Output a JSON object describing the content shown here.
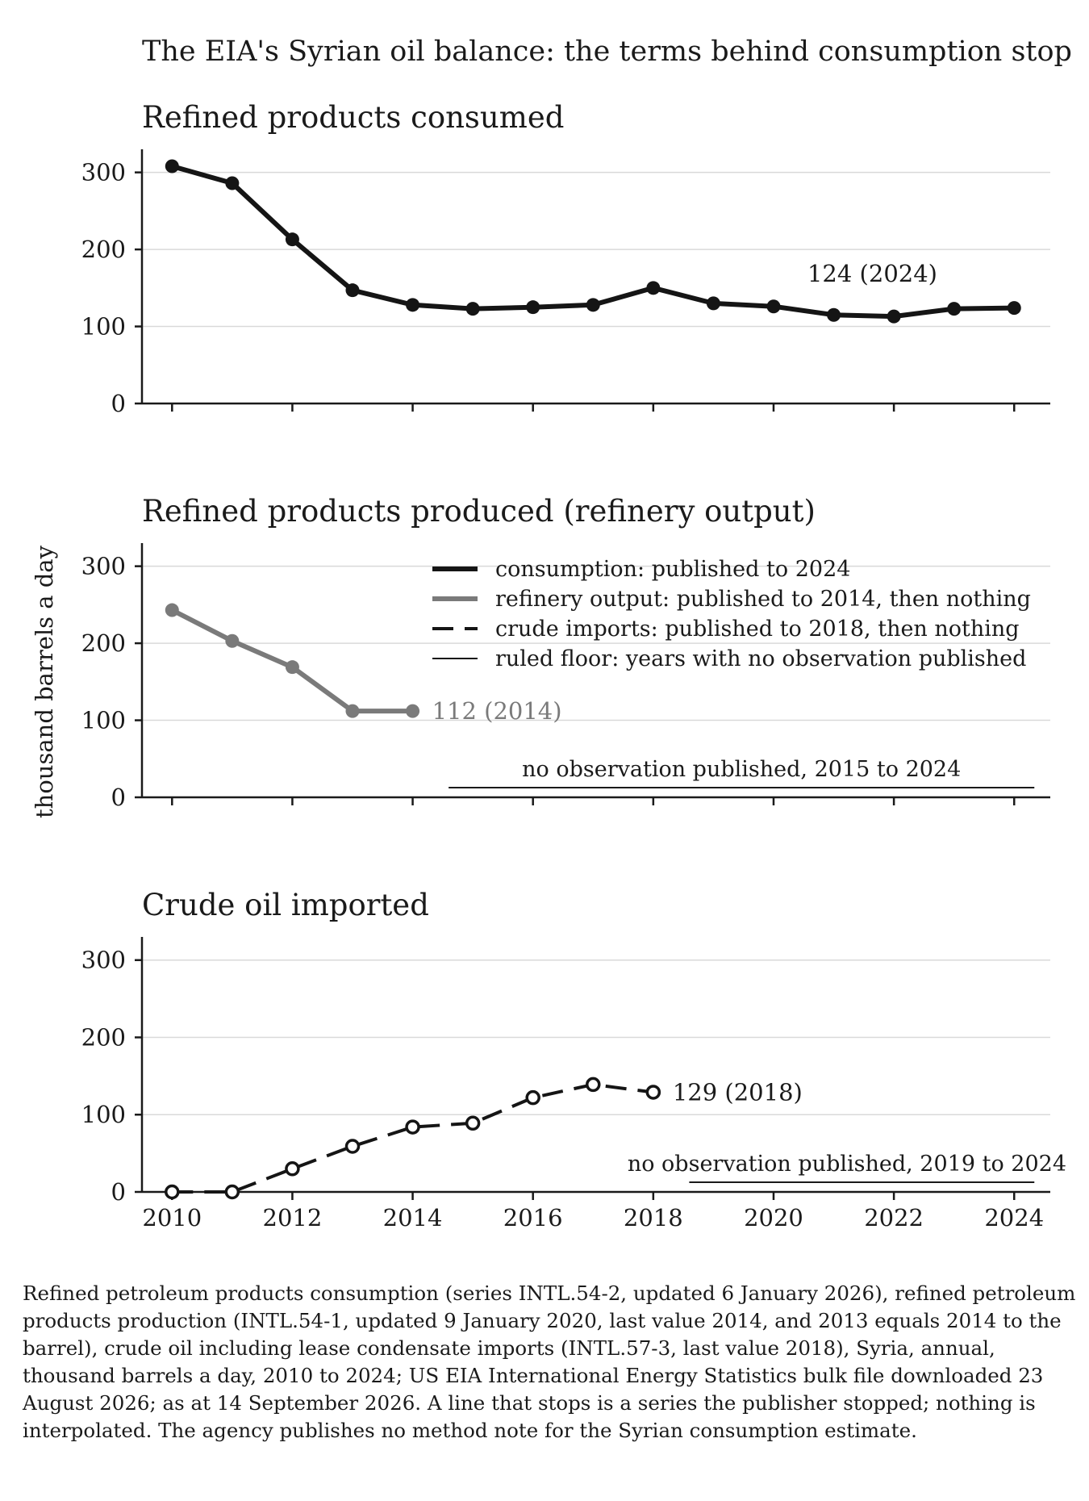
{
  "chart_data": {
    "type": "line",
    "title": "The EIA's Syrian oil balance: the terms behind consumption stop",
    "ylabel": "thousand barrels a day",
    "x": [
      2010,
      2011,
      2012,
      2013,
      2014,
      2015,
      2016,
      2017,
      2018,
      2019,
      2020,
      2021,
      2022,
      2023,
      2024
    ],
    "xticks": [
      "2010",
      "2012",
      "2014",
      "2016",
      "2018",
      "2020",
      "2022",
      "2024"
    ],
    "xlim": [
      2009.5,
      2024.6
    ],
    "ylim": [
      0,
      330
    ],
    "yticks": [
      "0",
      "100",
      "200",
      "300"
    ],
    "grid": "horizontal",
    "legend_position": "upper-right of middle panel",
    "legend": [
      {
        "label": "consumption: published to 2024",
        "color": "#151515",
        "style": "solid-thick"
      },
      {
        "label": "refinery output: published to 2014, then nothing",
        "color": "#7a7a7a",
        "style": "solid-thick"
      },
      {
        "label": "crude imports: published to 2018, then nothing",
        "color": "#151515",
        "style": "dashed"
      },
      {
        "label": "ruled floor: years with no observation published",
        "color": "#151515",
        "style": "thin"
      }
    ],
    "panels": [
      {
        "title": "Refined products consumed",
        "series": [
          {
            "color": "#151515",
            "style": "solid",
            "marker": "filled",
            "x": [
              2010,
              2011,
              2012,
              2013,
              2014,
              2015,
              2016,
              2017,
              2018,
              2019,
              2020,
              2021,
              2022,
              2023,
              2024
            ],
            "values": [
              308,
              286,
              213,
              147,
              128,
              123,
              125,
              128,
              150,
              130,
              126,
              115,
              113,
              123,
              124
            ]
          }
        ],
        "end_label": "124 (2024)"
      },
      {
        "title": "Refined products produced (refinery output)",
        "series": [
          {
            "color": "#7a7a7a",
            "style": "solid",
            "marker": "filled",
            "x": [
              2010,
              2011,
              2012,
              2013,
              2014
            ],
            "values": [
              243,
              203,
              169,
              112,
              112
            ]
          }
        ],
        "end_label": "112 (2014)",
        "gap_note": "no observation published, 2015 to 2024",
        "gap_years": [
          2015,
          2024
        ]
      },
      {
        "title": "Crude oil imported",
        "series": [
          {
            "color": "#151515",
            "style": "dashed",
            "marker": "open",
            "x": [
              2010,
              2011,
              2012,
              2013,
              2014,
              2015,
              2016,
              2017,
              2018
            ],
            "values": [
              0,
              0,
              30,
              59,
              84,
              89,
              122,
              139,
              129
            ]
          }
        ],
        "end_label": "129 (2018)",
        "gap_note": "no observation published, 2019 to 2024",
        "gap_years": [
          2019,
          2024
        ]
      }
    ]
  },
  "footnote": "Refined petroleum products consumption (series INTL.54-2, updated 6 January 2026), refined petroleum products production (INTL.54-1, updated 9 January 2020, last value 2014, and 2013 equals 2014 to the barrel), crude oil including lease condensate imports (INTL.57-3, last value 2018), Syria, annual, thousand barrels a day, 2010 to 2024; US EIA International Energy Statistics bulk file downloaded 23 August 2026; as at 14 September 2026. A line that stops is a series the publisher stopped; nothing is interpolated. The agency publishes no method note for the Syrian consumption estimate."
}
